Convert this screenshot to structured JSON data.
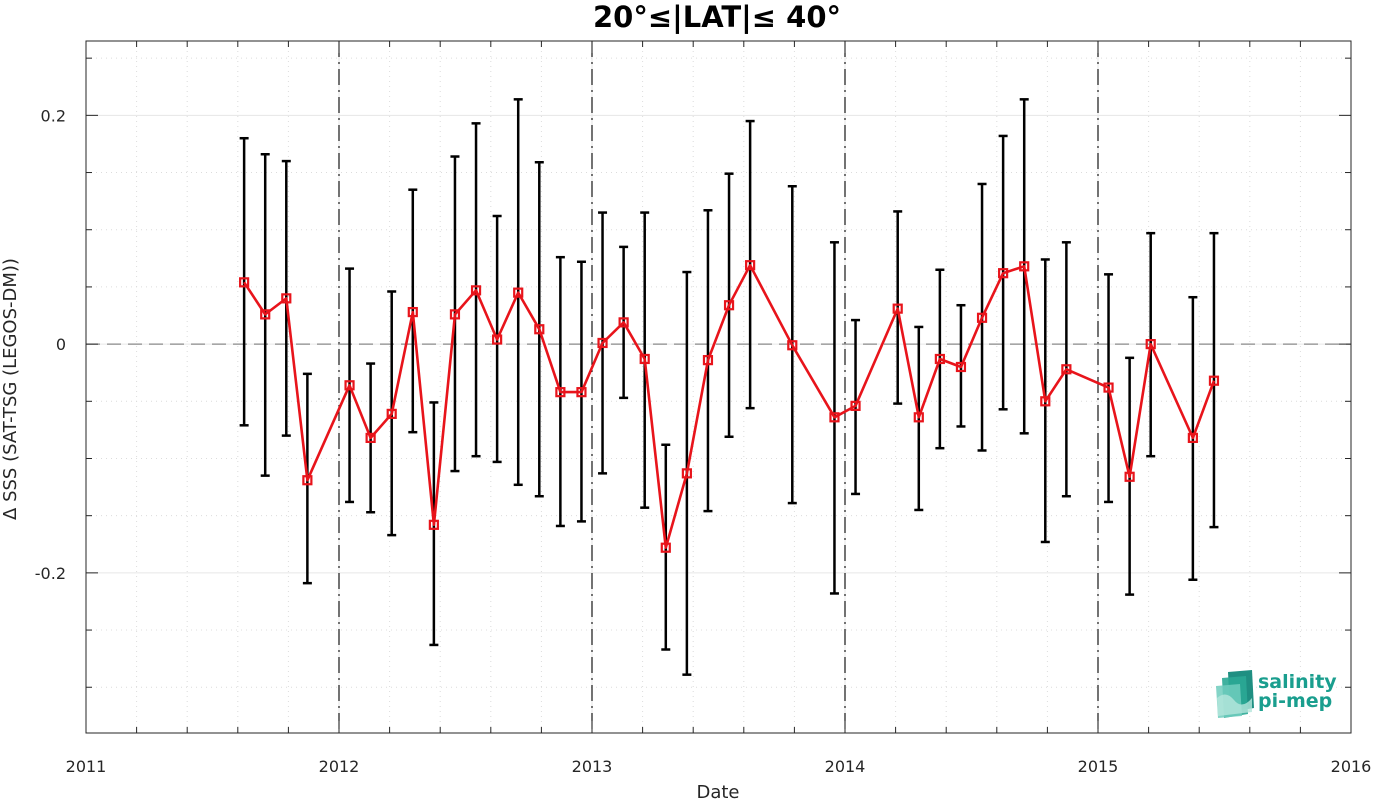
{
  "chart_data": {
    "type": "line",
    "title": "20°≤|LAT|≤ 40°",
    "xlabel": "Date",
    "ylabel": "Δ SSS (SAT-TSG (LEGOS-DM))",
    "xlim": [
      2011,
      2016
    ],
    "ylim": [
      -0.34,
      0.265
    ],
    "x_ticks": [
      "2011",
      "2012",
      "2013",
      "2014",
      "2015",
      "2016"
    ],
    "y_ticks": [
      "0.2",
      "0",
      "-0.2"
    ],
    "y_tick_values": [
      0.2,
      0,
      -0.2
    ],
    "grid": true,
    "zero_line": true,
    "year_boundaries": [
      2012,
      2013,
      2014,
      2015
    ],
    "series": [
      {
        "color": "#e8141b",
        "errorbar_color": "#000000",
        "marker": "square",
        "x": [
          "2011-08",
          "2011-09",
          "2011-10",
          "2011-11",
          "2012-01",
          "2012-02",
          "2012-03",
          "2012-04",
          "2012-05",
          "2012-06",
          "2012-07",
          "2012-08",
          "2012-09",
          "2012-10",
          "2012-11",
          "2012-12",
          "2013-01",
          "2013-02",
          "2013-03",
          "2013-04",
          "2013-05",
          "2013-06",
          "2013-07",
          "2013-08",
          "2013-10",
          "2013-12",
          "2014-01",
          "2014-03",
          "2014-04",
          "2014-05",
          "2014-06",
          "2014-07",
          "2014-08",
          "2014-09",
          "2014-10",
          "2014-11",
          "2015-01",
          "2015-02",
          "2015-03",
          "2015-05",
          "2015-06"
        ],
        "values": [
          0.054,
          0.026,
          0.04,
          -0.119,
          -0.036,
          -0.082,
          -0.061,
          0.028,
          -0.158,
          0.026,
          0.047,
          0.004,
          0.045,
          0.013,
          -0.042,
          -0.042,
          0.001,
          0.019,
          -0.013,
          -0.178,
          -0.113,
          -0.014,
          0.034,
          0.069,
          -0.001,
          -0.064,
          -0.054,
          0.031,
          -0.064,
          -0.013,
          -0.02,
          0.023,
          0.062,
          0.068,
          -0.05,
          -0.022,
          -0.038,
          -0.116,
          0.0,
          -0.082,
          -0.032
        ],
        "err_high": [
          0.18,
          0.166,
          0.16,
          -0.026,
          0.066,
          -0.017,
          0.046,
          0.135,
          -0.051,
          0.164,
          0.193,
          0.112,
          0.214,
          0.159,
          0.076,
          0.072,
          0.115,
          0.085,
          0.115,
          -0.088,
          0.063,
          0.117,
          0.149,
          0.195,
          0.138,
          0.089,
          0.021,
          0.116,
          0.015,
          0.065,
          0.034,
          0.14,
          0.182,
          0.214,
          0.074,
          0.089,
          0.061,
          -0.012,
          0.097,
          0.041,
          0.097
        ],
        "err_low": [
          -0.071,
          -0.115,
          -0.08,
          -0.209,
          -0.138,
          -0.147,
          -0.167,
          -0.077,
          -0.263,
          -0.111,
          -0.098,
          -0.103,
          -0.123,
          -0.133,
          -0.159,
          -0.155,
          -0.113,
          -0.047,
          -0.143,
          -0.267,
          -0.289,
          -0.146,
          -0.081,
          -0.056,
          -0.139,
          -0.218,
          -0.131,
          -0.052,
          -0.145,
          -0.091,
          -0.072,
          -0.093,
          -0.057,
          -0.078,
          -0.173,
          -0.133,
          -0.138,
          -0.219,
          -0.098,
          -0.206,
          -0.16
        ]
      }
    ]
  },
  "logo": {
    "line1": "salinity",
    "line2": "pi-mep",
    "color": "#1a9e8e"
  }
}
